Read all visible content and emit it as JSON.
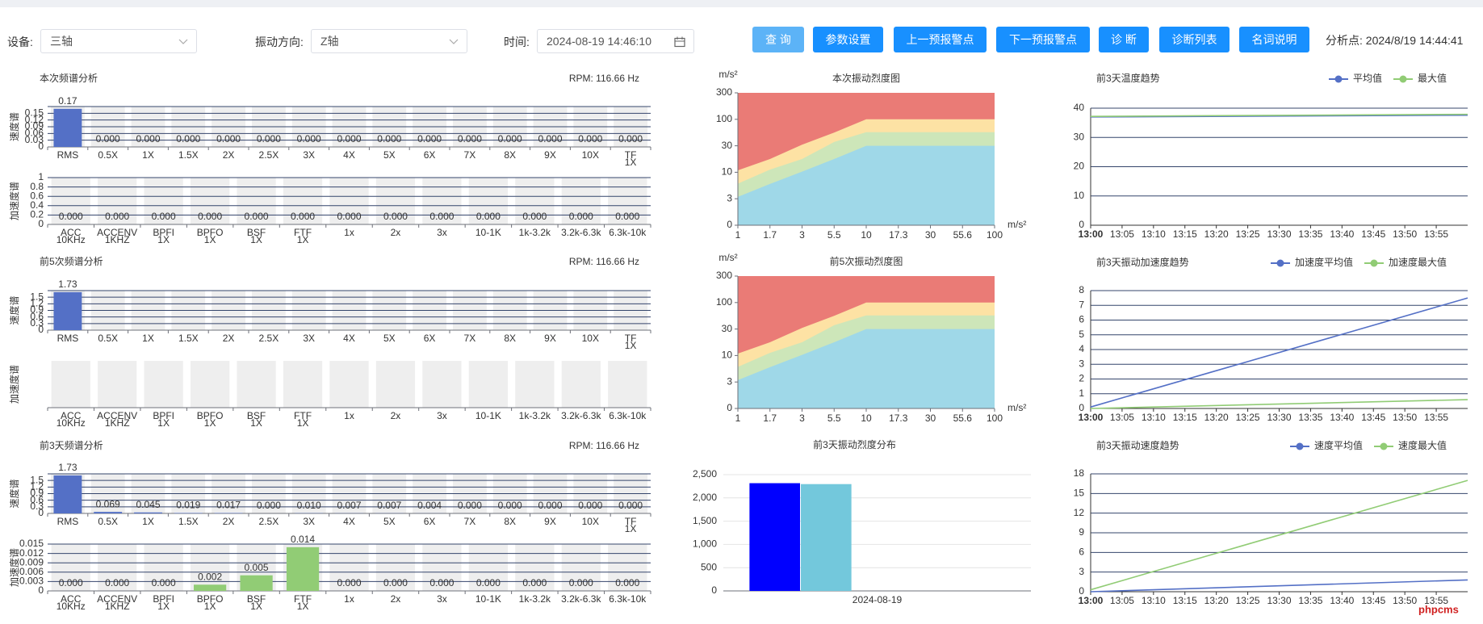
{
  "toolbar": {
    "device_label": "设备:",
    "device": "三轴",
    "direction_label": "振动方向:",
    "direction": "Z轴",
    "time_label": "时间:",
    "time": "2024-08-19 14:46:10",
    "buttons": [
      "查 询",
      "参数设置",
      "上一预报警点",
      "下一预报警点",
      "诊 断",
      "诊断列表",
      "名词说明"
    ],
    "analysis_point": "分析点: 2024/8/19 14:44:41"
  },
  "watermark": "phpcms",
  "chart_data": [
    {
      "type": "spectrum",
      "title": "本次频谱分析",
      "subtitle": "RPM: 116.66 Hz",
      "ylabel": "速度谱",
      "categories": [
        [
          "RMS"
        ],
        [
          "0.5X"
        ],
        [
          "1X"
        ],
        [
          "1.5X"
        ],
        [
          "2X"
        ],
        [
          "2.5X"
        ],
        [
          "3X"
        ],
        [
          "4X"
        ],
        [
          "5X"
        ],
        [
          "6X"
        ],
        [
          "7X"
        ],
        [
          "8X"
        ],
        [
          "9X"
        ],
        [
          "10X"
        ],
        [
          "TF",
          "1X"
        ]
      ],
      "values": [
        0.17,
        0,
        0,
        0,
        0,
        0,
        0,
        0,
        0,
        0,
        0,
        0,
        0,
        0,
        0
      ],
      "value_labels": [
        "0.17",
        "0.000",
        "0.000",
        "0.000",
        "0.000",
        "0.000",
        "0.000",
        "0.000",
        "0.000",
        "0.000",
        "0.000",
        "0.000",
        "0.000",
        "0.000",
        "0.000"
      ],
      "color": "#5470c6",
      "ylim": [
        0,
        0.18
      ],
      "yticks": [
        0,
        0.03,
        0.06,
        0.09,
        0.12,
        0.15
      ]
    },
    {
      "type": "spectrum",
      "ylabel": "加速度谱",
      "categories": [
        [
          "ACC",
          "10KHz"
        ],
        [
          "ACCENV",
          "1KHZ"
        ],
        [
          "BPFI",
          "1X"
        ],
        [
          "BPFO",
          "1X"
        ],
        [
          "BSF",
          "1X"
        ],
        [
          "FTF",
          "1X"
        ],
        [
          "1x"
        ],
        [
          "2x"
        ],
        [
          "3x"
        ],
        [
          "10-1K"
        ],
        [
          "1k-3.2k"
        ],
        [
          "3.2k-6.3k"
        ],
        [
          "6.3k-10k"
        ]
      ],
      "values": [
        0,
        0,
        0,
        0,
        0,
        0,
        0,
        0,
        0,
        0,
        0,
        0,
        0
      ],
      "value_labels": [
        "0.000",
        "0.000",
        "0.000",
        "0.000",
        "0.000",
        "0.000",
        "0.000",
        "0.000",
        "0.000",
        "0.000",
        "0.000",
        "0.000",
        "0.000"
      ],
      "color": "#91cc75",
      "ylim": [
        0,
        1
      ],
      "yticks": [
        0,
        0.2,
        0.4,
        0.6,
        0.8,
        1
      ]
    },
    {
      "type": "spectrum",
      "title": "前5次频谱分析",
      "subtitle": "RPM: 116.66 Hz",
      "ylabel": "速度谱",
      "categories": [
        [
          "RMS"
        ],
        [
          "0.5X"
        ],
        [
          "1X"
        ],
        [
          "1.5X"
        ],
        [
          "2X"
        ],
        [
          "2.5X"
        ],
        [
          "3X"
        ],
        [
          "4X"
        ],
        [
          "5X"
        ],
        [
          "6X"
        ],
        [
          "7X"
        ],
        [
          "8X"
        ],
        [
          "9X"
        ],
        [
          "10X"
        ],
        [
          "TF",
          "1X"
        ]
      ],
      "values": [
        1.73,
        null,
        null,
        null,
        null,
        null,
        null,
        null,
        null,
        null,
        null,
        null,
        null,
        null,
        null
      ],
      "color": "#5470c6",
      "ylim": [
        0,
        1.8
      ],
      "yticks": [
        0,
        0.3,
        0.6,
        0.9,
        1.2,
        1.5
      ]
    },
    {
      "type": "spectrum",
      "ylabel": "加速度谱",
      "categories": [
        [
          "ACC",
          "10KHz"
        ],
        [
          "ACCENV",
          "1KHZ"
        ],
        [
          "BPFI",
          "1X"
        ],
        [
          "BPFO",
          "1X"
        ],
        [
          "BSF",
          "1X"
        ],
        [
          "FTF",
          "1X"
        ],
        [
          "1x"
        ],
        [
          "2x"
        ],
        [
          "3x"
        ],
        [
          "10-1K"
        ],
        [
          "1k-3.2k"
        ],
        [
          "3.2k-6.3k"
        ],
        [
          "6.3k-10k"
        ]
      ],
      "color": "#91cc75"
    },
    {
      "type": "spectrum",
      "title": "前3天频谱分析",
      "subtitle": "RPM: 116.66 Hz",
      "ylabel": "速度谱",
      "categories": [
        [
          "RMS"
        ],
        [
          "0.5X"
        ],
        [
          "1X"
        ],
        [
          "1.5X"
        ],
        [
          "2X"
        ],
        [
          "2.5X"
        ],
        [
          "3X"
        ],
        [
          "4X"
        ],
        [
          "5X"
        ],
        [
          "6X"
        ],
        [
          "7X"
        ],
        [
          "8X"
        ],
        [
          "9X"
        ],
        [
          "10X"
        ],
        [
          "TF",
          "1X"
        ]
      ],
      "values": [
        1.73,
        0.069,
        0.045,
        0.019,
        0.017,
        0,
        0.01,
        0.007,
        0.007,
        0.004,
        0,
        0,
        0,
        0,
        0
      ],
      "value_labels": [
        "1.73",
        "0.069",
        "0.045",
        "0.019",
        "0.017",
        "0.000",
        "0.010",
        "0.007",
        "0.007",
        "0.004",
        "0.000",
        "0.000",
        "0.000",
        "0.000",
        "0.000"
      ],
      "color": "#5470c6",
      "ylim": [
        0,
        1.8
      ],
      "yticks": [
        0,
        0.3,
        0.6,
        0.9,
        1.2,
        1.5
      ]
    },
    {
      "type": "spectrum",
      "ylabel": "加速度谱",
      "categories": [
        [
          "ACC",
          "10KHz"
        ],
        [
          "ACCENV",
          "1KHZ"
        ],
        [
          "BPFI",
          "1X"
        ],
        [
          "BPFO",
          "1X"
        ],
        [
          "BSF",
          "1X"
        ],
        [
          "FTF",
          "1X"
        ],
        [
          "1x"
        ],
        [
          "2x"
        ],
        [
          "3x"
        ],
        [
          "10-1K"
        ],
        [
          "1k-3.2k"
        ],
        [
          "3.2k-6.3k"
        ],
        [
          "6.3k-10k"
        ]
      ],
      "values": [
        0,
        0,
        0,
        0.002,
        0.005,
        0.014,
        0,
        0,
        0,
        0,
        0,
        0,
        0
      ],
      "value_labels": [
        "0.000",
        "0.000",
        "0.000",
        "0.002",
        "0.005",
        "0.014",
        "0.000",
        "0.000",
        "0.000",
        "0.000",
        "0.000",
        "0.000",
        "0.000"
      ],
      "color": "#91cc75",
      "ylim": [
        0,
        0.015
      ],
      "yticks": [
        0,
        0.003,
        0.006,
        0.009,
        0.012,
        0.015
      ]
    },
    {
      "type": "zone",
      "title": "本次振动烈度图",
      "ylabel": "m/s²",
      "xlabel": "m/s²",
      "categories": [
        1,
        1.7,
        3,
        5.5,
        10,
        17.3,
        30,
        55.6,
        100
      ],
      "ylim": [
        0,
        300
      ],
      "yticks": [
        0,
        3,
        10,
        30,
        100,
        300
      ],
      "series": [
        {
          "color": "#ea7b76",
          "values": [
            300,
            300,
            300,
            300,
            300,
            300,
            300,
            300,
            300
          ]
        },
        {
          "color": "#fde2a4",
          "values": [
            11.5,
            20,
            33,
            65,
            100,
            100,
            100,
            100,
            100
          ]
        },
        {
          "color": "#cde6b9",
          "values": [
            7,
            12,
            20,
            40,
            66,
            66,
            66,
            66,
            66
          ]
        },
        {
          "color": "#9fd8e8",
          "values": [
            3.5,
            6.9,
            10.5,
            20,
            30,
            30,
            30,
            30,
            30
          ]
        }
      ]
    },
    {
      "type": "zone",
      "title": "前5次振动烈度图",
      "ylabel": "m/s²",
      "xlabel": "m/s²",
      "categories": [
        1,
        1.7,
        3,
        5.5,
        10,
        17.3,
        30,
        55.6,
        100
      ],
      "ylim": [
        0,
        300
      ],
      "yticks": [
        0,
        3,
        10,
        30,
        100,
        300
      ],
      "series": [
        {
          "color": "#ea7b76",
          "values": [
            300,
            300,
            300,
            300,
            300,
            300,
            300,
            300,
            300
          ]
        },
        {
          "color": "#fde2a4",
          "values": [
            11.5,
            20,
            33,
            65,
            100,
            100,
            100,
            100,
            100
          ]
        },
        {
          "color": "#cde6b9",
          "values": [
            7,
            12,
            20,
            40,
            66,
            66,
            66,
            66,
            66
          ]
        },
        {
          "color": "#9fd8e8",
          "values": [
            3.5,
            6.9,
            10.5,
            20,
            30,
            30,
            30,
            30,
            30
          ]
        }
      ]
    },
    {
      "type": "bar",
      "title": "前3天振动烈度分布",
      "categories": [
        "2024-08-19"
      ],
      "series": [
        {
          "color": "#0000ff",
          "values": [
            2317
          ]
        },
        {
          "color": "#73c8dc",
          "values": [
            2297
          ]
        }
      ],
      "ylim": [
        0,
        2500
      ],
      "yticks": [
        0,
        500,
        {
          "value": 1000,
          "label": "1,000"
        },
        {
          "value": 1500,
          "label": "1,500"
        },
        {
          "value": 2000,
          "label": "2,000"
        },
        {
          "value": 2500,
          "label": "2,500"
        }
      ],
      "grid": true
    },
    {
      "type": "line",
      "title": "前3天温度趋势",
      "legend": "top-right",
      "xlim": [
        0,
        60
      ],
      "xticks": [
        {
          "value": 0,
          "label": "13:00"
        },
        {
          "value": 5,
          "label": "13:05"
        },
        {
          "value": 10,
          "label": "13:10"
        },
        {
          "value": 15,
          "label": "13:15"
        },
        {
          "value": 20,
          "label": "13:20"
        },
        {
          "value": 25,
          "label": "13:25"
        },
        {
          "value": 30,
          "label": "13:30"
        },
        {
          "value": 35,
          "label": "13:35"
        },
        {
          "value": 40,
          "label": "13:40"
        },
        {
          "value": 45,
          "label": "13:45"
        },
        {
          "value": 50,
          "label": "13:50"
        },
        {
          "value": 55,
          "label": "13:55"
        }
      ],
      "ylim": [
        0,
        40
      ],
      "yticks": [
        0,
        10,
        20,
        30,
        40
      ],
      "grid": true,
      "series": [
        {
          "name": "平均值",
          "color": "#5470c6",
          "x": [
            0,
            60
          ],
          "values": [
            37,
            37.6
          ]
        },
        {
          "name": "最大值",
          "color": "#91cc75",
          "x": [
            0,
            60
          ],
          "values": [
            37.2,
            37.9
          ]
        }
      ]
    },
    {
      "type": "line",
      "title": "前3天振动加速度趋势",
      "legend": "top-right",
      "xlim": [
        0,
        60
      ],
      "xticks": [
        {
          "value": 0,
          "label": "13:00"
        },
        {
          "value": 5,
          "label": "13:05"
        },
        {
          "value": 10,
          "label": "13:10"
        },
        {
          "value": 15,
          "label": "13:15"
        },
        {
          "value": 20,
          "label": "13:20"
        },
        {
          "value": 25,
          "label": "13:25"
        },
        {
          "value": 30,
          "label": "13:30"
        },
        {
          "value": 35,
          "label": "13:35"
        },
        {
          "value": 40,
          "label": "13:40"
        },
        {
          "value": 45,
          "label": "13:45"
        },
        {
          "value": 50,
          "label": "13:50"
        },
        {
          "value": 55,
          "label": "13:55"
        }
      ],
      "ylim": [
        0,
        8
      ],
      "yticks": [
        0,
        1,
        2,
        3,
        4,
        5,
        6,
        7,
        8
      ],
      "grid": true,
      "series": [
        {
          "name": "加速度平均值",
          "color": "#5470c6",
          "x": [
            0,
            60
          ],
          "values": [
            0.1,
            7.5
          ]
        },
        {
          "name": "加速度最大值",
          "color": "#91cc75",
          "x": [
            0,
            60
          ],
          "values": [
            0,
            0.6
          ]
        }
      ]
    },
    {
      "type": "line",
      "title": "前3天振动速度趋势",
      "legend": "top-right",
      "xlim": [
        0,
        60
      ],
      "xticks": [
        {
          "value": 0,
          "label": "13:00"
        },
        {
          "value": 5,
          "label": "13:05"
        },
        {
          "value": 10,
          "label": "13:10"
        },
        {
          "value": 15,
          "label": "13:15"
        },
        {
          "value": 20,
          "label": "13:20"
        },
        {
          "value": 25,
          "label": "13:25"
        },
        {
          "value": 30,
          "label": "13:30"
        },
        {
          "value": 35,
          "label": "13:35"
        },
        {
          "value": 40,
          "label": "13:40"
        },
        {
          "value": 45,
          "label": "13:45"
        },
        {
          "value": 50,
          "label": "13:50"
        },
        {
          "value": 55,
          "label": "13:55"
        }
      ],
      "ylim": [
        0,
        18
      ],
      "yticks": [
        0,
        3,
        6,
        9,
        12,
        15,
        18
      ],
      "grid": true,
      "series": [
        {
          "name": "速度平均值",
          "color": "#5470c6",
          "x": [
            0,
            60
          ],
          "values": [
            0,
            1.8
          ]
        },
        {
          "name": "速度最大值",
          "color": "#91cc75",
          "x": [
            0,
            60
          ],
          "values": [
            0.3,
            17
          ]
        }
      ]
    }
  ]
}
